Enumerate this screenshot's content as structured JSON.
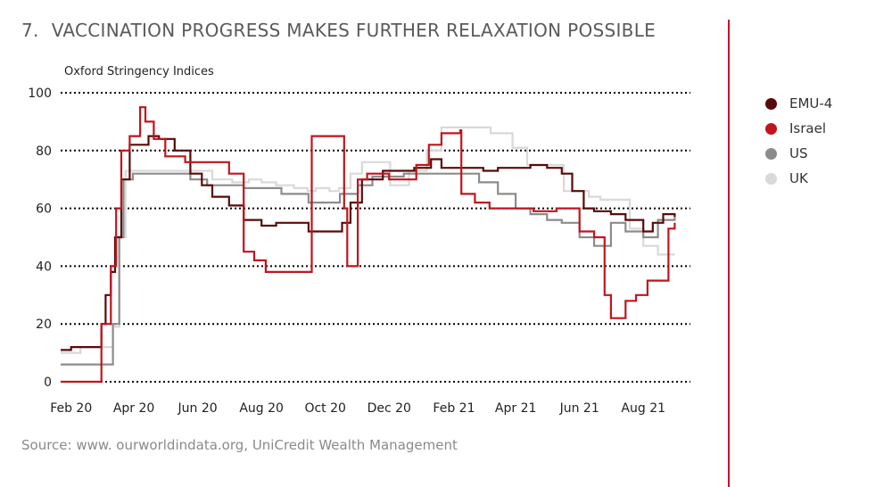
{
  "header": {
    "number": "7.",
    "title": "VACCINATION PROGRESS MAKES FURTHER RELAXATION POSSIBLE"
  },
  "source": "Source: www. ourworldindata.org, UniCredit Wealth Management",
  "colors": {
    "accent": "#c8102e",
    "gridline": "#000000",
    "EMU-4": "#5a0a0a",
    "Israel": "#c0151c",
    "US": "#8c8c8c",
    "UK": "#d9d9d9"
  },
  "chart_data": {
    "type": "line",
    "title": "",
    "ylabel": "Oxford Stringency Indices",
    "xlabel": "",
    "ylim": [
      0,
      100
    ],
    "xlim": [
      "2020-01-22",
      "2021-09-15"
    ],
    "yticks": [
      0,
      20,
      40,
      60,
      80,
      100
    ],
    "xticks": [
      {
        "date": "2020-02-01",
        "label": "Feb 20"
      },
      {
        "date": "2020-04-01",
        "label": "Apr 20"
      },
      {
        "date": "2020-06-01",
        "label": "Jun 20"
      },
      {
        "date": "2020-08-01",
        "label": "Aug 20"
      },
      {
        "date": "2020-10-01",
        "label": "Oct 20"
      },
      {
        "date": "2020-12-01",
        "label": "Dec 20"
      },
      {
        "date": "2021-02-01",
        "label": "Feb 21"
      },
      {
        "date": "2021-04-01",
        "label": "Apr 21"
      },
      {
        "date": "2021-06-01",
        "label": "Jun 21"
      },
      {
        "date": "2021-08-01",
        "label": "Aug 21"
      }
    ],
    "grid": true,
    "legend_position": "right",
    "series": [
      {
        "name": "UK",
        "x": [
          "2020-01-22",
          "2020-02-10",
          "2020-03-01",
          "2020-03-12",
          "2020-03-18",
          "2020-03-24",
          "2020-04-10",
          "2020-05-13",
          "2020-06-01",
          "2020-06-15",
          "2020-07-04",
          "2020-07-20",
          "2020-08-01",
          "2020-08-15",
          "2020-09-01",
          "2020-09-14",
          "2020-09-22",
          "2020-10-05",
          "2020-10-14",
          "2020-10-25",
          "2020-11-05",
          "2020-12-02",
          "2020-12-20",
          "2021-01-06",
          "2021-01-20",
          "2021-02-15",
          "2021-03-08",
          "2021-03-29",
          "2021-04-12",
          "2021-05-17",
          "2021-06-10",
          "2021-06-21",
          "2021-07-19",
          "2021-08-01",
          "2021-08-15",
          "2021-08-31"
        ],
        "y": [
          10,
          12,
          12,
          19,
          50,
          73,
          73,
          73,
          73,
          70,
          69,
          70,
          69,
          68,
          67,
          66,
          67,
          66,
          67,
          72,
          76,
          68,
          73,
          80,
          88,
          88,
          86,
          81,
          75,
          66,
          64,
          63,
          53,
          47,
          44,
          44
        ]
      },
      {
        "name": "US",
        "x": [
          "2020-01-22",
          "2020-03-01",
          "2020-03-12",
          "2020-03-18",
          "2020-03-22",
          "2020-03-31",
          "2020-04-15",
          "2020-05-08",
          "2020-05-25",
          "2020-06-10",
          "2020-06-25",
          "2020-07-15",
          "2020-08-15",
          "2020-08-20",
          "2020-09-15",
          "2020-10-15",
          "2020-11-01",
          "2020-11-15",
          "2020-12-15",
          "2021-01-15",
          "2021-02-10",
          "2021-02-25",
          "2021-03-15",
          "2021-04-01",
          "2021-04-15",
          "2021-05-01",
          "2021-05-15",
          "2021-06-01",
          "2021-06-15",
          "2021-07-01",
          "2021-07-15",
          "2021-08-01",
          "2021-08-15",
          "2021-08-31"
        ],
        "y": [
          6,
          6,
          20,
          50,
          70,
          72,
          72,
          72,
          70,
          68,
          68,
          67,
          67,
          65,
          62,
          65,
          68,
          71,
          72,
          72,
          72,
          69,
          65,
          60,
          58,
          56,
          55,
          50,
          47,
          55,
          52,
          50,
          56,
          57
        ]
      },
      {
        "name": "EMU-4",
        "x": [
          "2020-01-22",
          "2020-02-01",
          "2020-02-20",
          "2020-03-01",
          "2020-03-05",
          "2020-03-10",
          "2020-03-14",
          "2020-03-20",
          "2020-03-28",
          "2020-04-15",
          "2020-04-25",
          "2020-05-10",
          "2020-05-25",
          "2020-06-05",
          "2020-06-15",
          "2020-07-01",
          "2020-07-15",
          "2020-08-01",
          "2020-08-15",
          "2020-09-01",
          "2020-09-15",
          "2020-09-30",
          "2020-10-10",
          "2020-10-17",
          "2020-10-25",
          "2020-11-05",
          "2020-11-25",
          "2020-12-10",
          "2020-12-25",
          "2021-01-10",
          "2021-01-20",
          "2021-02-01",
          "2021-02-15",
          "2021-03-01",
          "2021-03-15",
          "2021-04-01",
          "2021-04-15",
          "2021-05-01",
          "2021-05-15",
          "2021-05-25",
          "2021-06-05",
          "2021-06-15",
          "2021-07-01",
          "2021-07-15",
          "2021-08-01",
          "2021-08-10",
          "2021-08-20",
          "2021-08-31"
        ],
        "y": [
          11,
          12,
          12,
          20,
          30,
          38,
          50,
          70,
          82,
          85,
          84,
          80,
          72,
          68,
          64,
          61,
          56,
          54,
          55,
          55,
          52,
          52,
          52,
          55,
          62,
          70,
          73,
          73,
          74,
          77,
          74,
          74,
          74,
          73,
          74,
          74,
          75,
          74,
          72,
          66,
          60,
          59,
          58,
          56,
          52,
          55,
          58,
          57
        ]
      },
      {
        "name": "Israel",
        "x": [
          "2020-01-22",
          "2020-02-12",
          "2020-02-20",
          "2020-03-01",
          "2020-03-10",
          "2020-03-15",
          "2020-03-20",
          "2020-03-28",
          "2020-04-07",
          "2020-04-12",
          "2020-04-20",
          "2020-05-01",
          "2020-05-20",
          "2020-06-25",
          "2020-07-01",
          "2020-07-15",
          "2020-07-25",
          "2020-08-05",
          "2020-09-01",
          "2020-09-18",
          "2020-10-18",
          "2020-10-19",
          "2020-10-22",
          "2020-10-25",
          "2020-11-01",
          "2020-11-10",
          "2020-12-01",
          "2020-12-27",
          "2021-01-08",
          "2021-01-20",
          "2021-02-07",
          "2021-02-08",
          "2021-02-21",
          "2021-03-07",
          "2021-03-20",
          "2021-04-18",
          "2021-05-10",
          "2021-06-01",
          "2021-06-15",
          "2021-06-25",
          "2021-07-01",
          "2021-07-15",
          "2021-07-25",
          "2021-08-05",
          "2021-08-18",
          "2021-08-25",
          "2021-08-31"
        ],
        "y": [
          0,
          0,
          0,
          20,
          40,
          60,
          80,
          85,
          95,
          90,
          84,
          78,
          76,
          76,
          72,
          45,
          42,
          38,
          38,
          85,
          85,
          60,
          40,
          40,
          70,
          72,
          70,
          75,
          82,
          86,
          87,
          65,
          62,
          60,
          60,
          59,
          60,
          52,
          50,
          30,
          22,
          28,
          30,
          35,
          35,
          53,
          55
        ]
      }
    ]
  }
}
